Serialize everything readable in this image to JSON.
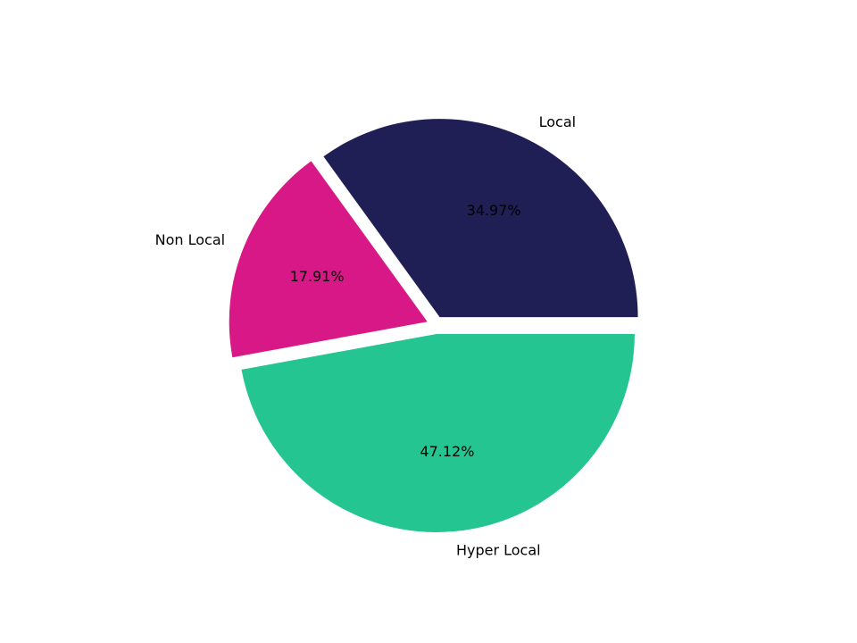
{
  "chart_data": {
    "type": "pie",
    "categories": [
      "Local",
      "Non Local",
      "Hyper Local"
    ],
    "values": [
      34.97,
      17.91,
      47.12
    ],
    "value_labels": [
      "34.97%",
      "17.91%",
      "47.12%"
    ],
    "colors": [
      "#1f1f55",
      "#d91887",
      "#25c592"
    ]
  }
}
